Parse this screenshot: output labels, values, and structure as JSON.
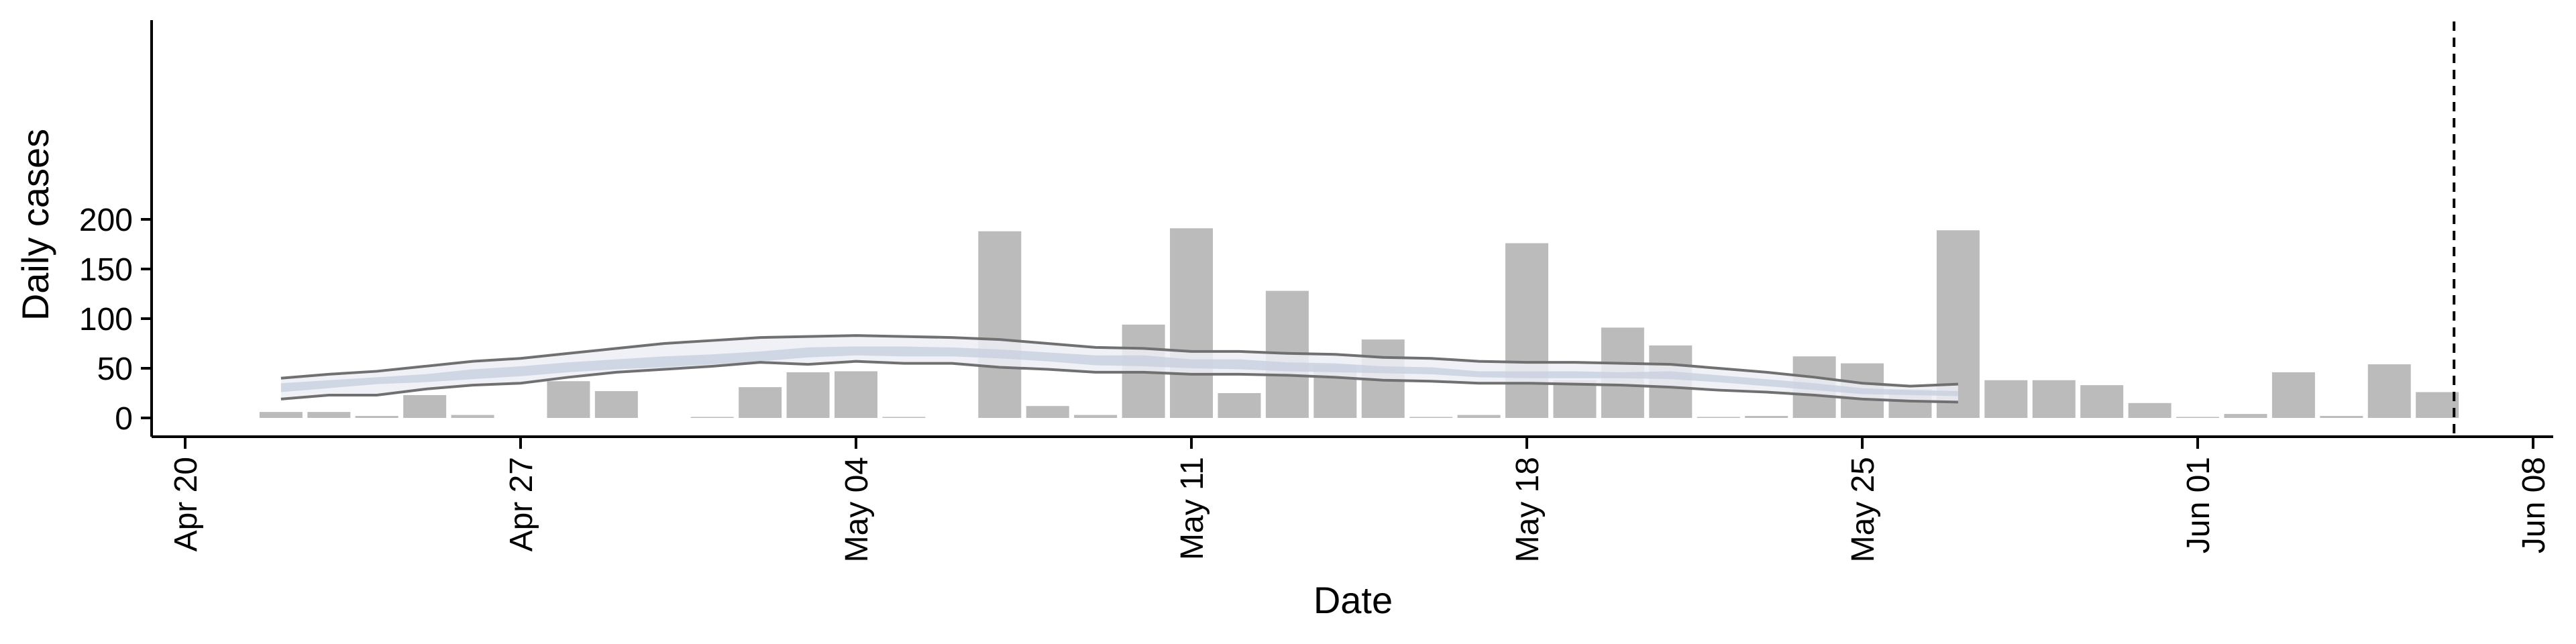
{
  "chart_data": {
    "type": "bar",
    "title": "",
    "xlabel": "Date",
    "ylabel": "Daily cases",
    "ylim": [
      0,
      200
    ],
    "y_ticks": [
      0,
      50,
      100,
      150,
      200
    ],
    "x_range": [
      "2020-04-19",
      "2020-06-08"
    ],
    "x_ticks": [
      {
        "date": "2020-04-20",
        "label": "Apr 20"
      },
      {
        "date": "2020-04-27",
        "label": "Apr 27"
      },
      {
        "date": "2020-05-04",
        "label": "May 04"
      },
      {
        "date": "2020-05-11",
        "label": "May 11"
      },
      {
        "date": "2020-05-18",
        "label": "May 18"
      },
      {
        "date": "2020-05-25",
        "label": "May 25"
      },
      {
        "date": "2020-06-01",
        "label": "Jun 01"
      },
      {
        "date": "2020-06-08",
        "label": "Jun 08"
      }
    ],
    "grid": false,
    "bars": {
      "color": "#bbbbbb",
      "dates": [
        "2020-04-22",
        "2020-04-23",
        "2020-04-24",
        "2020-04-25",
        "2020-04-26",
        "2020-04-27",
        "2020-04-28",
        "2020-04-29",
        "2020-04-30",
        "2020-05-01",
        "2020-05-02",
        "2020-05-03",
        "2020-05-04",
        "2020-05-05",
        "2020-05-06",
        "2020-05-07",
        "2020-05-08",
        "2020-05-09",
        "2020-05-10",
        "2020-05-11",
        "2020-05-12",
        "2020-05-13",
        "2020-05-14",
        "2020-05-15",
        "2020-05-16",
        "2020-05-17",
        "2020-05-18",
        "2020-05-19",
        "2020-05-20",
        "2020-05-21",
        "2020-05-22",
        "2020-05-23",
        "2020-05-24",
        "2020-05-25",
        "2020-05-26",
        "2020-05-27",
        "2020-05-28",
        "2020-05-29",
        "2020-05-30",
        "2020-05-31",
        "2020-06-01",
        "2020-06-02",
        "2020-06-03",
        "2020-06-04",
        "2020-06-05",
        "2020-06-06"
      ],
      "values": [
        6,
        6,
        2,
        23,
        3,
        0,
        37,
        27,
        0,
        1,
        31,
        46,
        47,
        1,
        0,
        188,
        12,
        3,
        94,
        191,
        25,
        128,
        53,
        79,
        1,
        3,
        176,
        38,
        91,
        73,
        1,
        2,
        62,
        55,
        29,
        189,
        38,
        38,
        33,
        15,
        1,
        4,
        46,
        2,
        54,
        26
      ]
    },
    "estimate": {
      "dates": [
        "2020-04-22",
        "2020-04-23",
        "2020-04-24",
        "2020-04-25",
        "2020-04-26",
        "2020-04-27",
        "2020-04-28",
        "2020-04-29",
        "2020-04-30",
        "2020-05-01",
        "2020-05-02",
        "2020-05-03",
        "2020-05-04",
        "2020-05-05",
        "2020-05-06",
        "2020-05-07",
        "2020-05-08",
        "2020-05-09",
        "2020-05-10",
        "2020-05-11",
        "2020-05-12",
        "2020-05-13",
        "2020-05-14",
        "2020-05-15",
        "2020-05-16",
        "2020-05-17",
        "2020-05-18",
        "2020-05-19",
        "2020-05-20",
        "2020-05-21",
        "2020-05-22",
        "2020-05-23",
        "2020-05-24",
        "2020-05-25",
        "2020-05-26",
        "2020-05-27"
      ],
      "outer_upper": [
        40,
        44,
        47,
        52,
        57,
        60,
        65,
        70,
        75,
        78,
        81,
        82,
        83,
        82,
        81,
        79,
        75,
        71,
        70,
        67,
        67,
        65,
        64,
        61,
        60,
        57,
        56,
        56,
        55,
        54,
        50,
        46,
        41,
        35,
        32,
        34
      ],
      "outer_lower": [
        19,
        23,
        23,
        29,
        33,
        35,
        41,
        46,
        49,
        52,
        56,
        54,
        57,
        55,
        55,
        51,
        49,
        46,
        46,
        44,
        44,
        43,
        41,
        38,
        37,
        35,
        35,
        34,
        33,
        31,
        28,
        26,
        23,
        19,
        17,
        16
      ],
      "inner_upper": [
        35,
        38,
        41,
        44,
        49,
        52,
        56,
        59,
        62,
        64,
        67,
        71,
        72,
        72,
        71,
        69,
        66,
        63,
        63,
        59,
        59,
        56,
        55,
        52,
        51,
        47,
        47,
        47,
        46,
        47,
        43,
        39,
        35,
        30,
        28,
        27
      ],
      "inner_lower": [
        26,
        30,
        34,
        36,
        39,
        42,
        46,
        49,
        51,
        54,
        57,
        61,
        63,
        62,
        62,
        60,
        57,
        53,
        52,
        50,
        49,
        47,
        46,
        45,
        44,
        41,
        40,
        40,
        40,
        39,
        36,
        32,
        28,
        24,
        23,
        22
      ],
      "outer_band_color": "#eceef5",
      "inner_band_color": "#c6cddd",
      "bound_line_color": "#707070"
    },
    "reference_line": {
      "date": "2020-06-06",
      "style": "dashed",
      "color": "#000000"
    }
  }
}
